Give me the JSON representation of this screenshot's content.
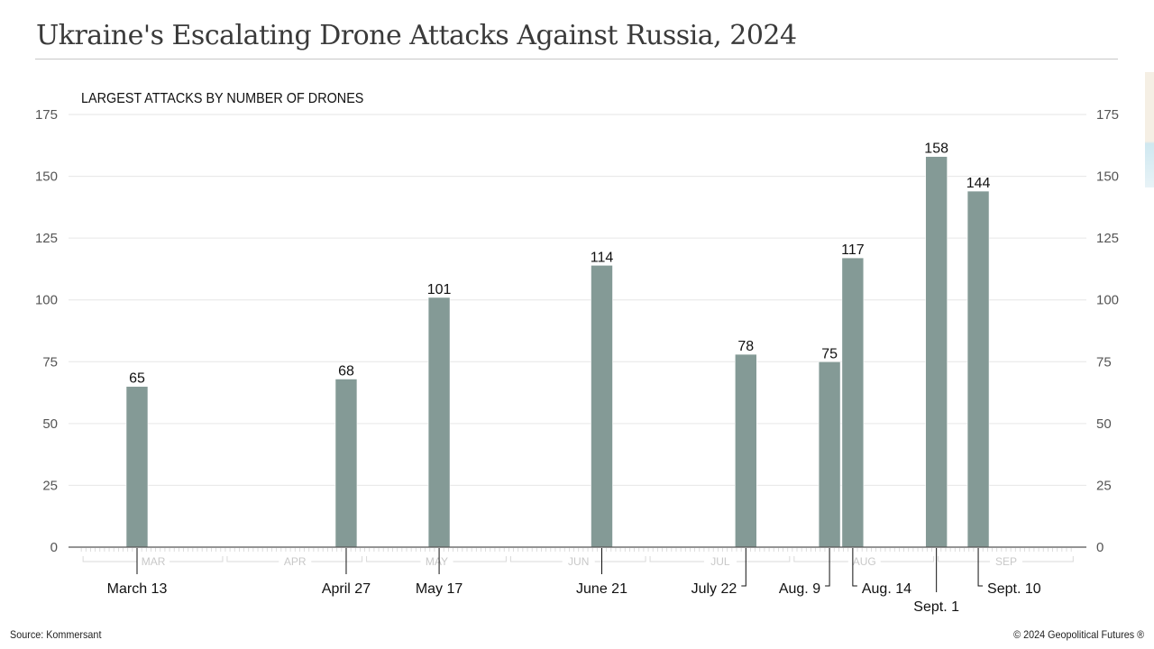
{
  "header": {
    "title": "Ukraine's Escalating Drone Attacks Against Russia, 2024"
  },
  "footer": {
    "source": "Source: Kommersant",
    "copyright": "© 2024 Geopolitical Futures ®"
  },
  "chart_data": {
    "type": "bar",
    "title": "Ukraine's Escalating Drone Attacks Against Russia, 2024",
    "subtitle": "LARGEST ATTACKS BY NUMBER OF DRONES",
    "xlabel": "",
    "ylabel": "",
    "ylim": [
      0,
      175
    ],
    "yticks": [
      0,
      25,
      50,
      75,
      100,
      125,
      150,
      175
    ],
    "grid": true,
    "bar_color": "#849a96",
    "months": [
      "MAR",
      "APR",
      "MAY",
      "JUN",
      "JUL",
      "AUG",
      "SEP"
    ],
    "categories": [
      "March 13",
      "April 27",
      "May 17",
      "June 21",
      "July 22",
      "Aug. 9",
      "Aug. 14",
      "Sept. 1",
      "Sept. 10"
    ],
    "dates": [
      "2024-03-13",
      "2024-04-27",
      "2024-05-17",
      "2024-06-21",
      "2024-07-22",
      "2024-08-09",
      "2024-08-14",
      "2024-09-01",
      "2024-09-10"
    ],
    "values": [
      65,
      68,
      101,
      114,
      78,
      75,
      117,
      158,
      144
    ]
  }
}
